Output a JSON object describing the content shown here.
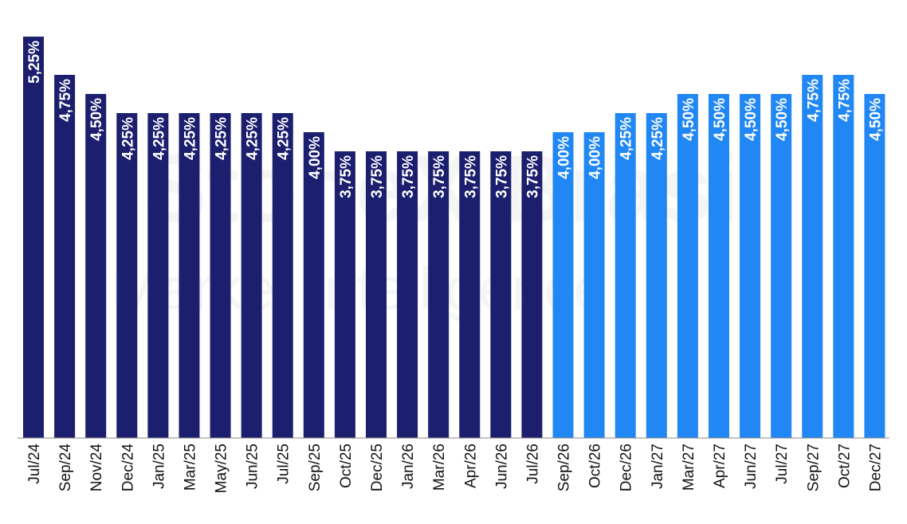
{
  "watermark": {
    "line1": "StoneX Brasil",
    "line2": "Market Intelligence"
  },
  "colors": {
    "historical": "#1b1f6e",
    "projected": "#2187f5",
    "label": "#ffffff",
    "axis": "#888888"
  },
  "chart_data": {
    "type": "bar",
    "title": "",
    "xlabel": "",
    "ylabel": "",
    "ylim": [
      0,
      5.25
    ],
    "grid": false,
    "legend": "none",
    "categories": [
      "Jul/24",
      "Sep/24",
      "Nov/24",
      "Dec/24",
      "Jan/25",
      "Mar/25",
      "May/25",
      "Jun/25",
      "Jul/25",
      "Sep/25",
      "Oct/25",
      "Dec/25",
      "Jan/26",
      "Mar/26",
      "Apr/26",
      "Jun/26",
      "Jul/26",
      "Sep/26",
      "Oct/26",
      "Dec/26",
      "Jan/27",
      "Mar/27",
      "Apr/27",
      "Jun/27",
      "Jul/27",
      "Sep/27",
      "Oct/27",
      "Dec/27"
    ],
    "values": [
      5.25,
      4.75,
      4.5,
      4.25,
      4.25,
      4.25,
      4.25,
      4.25,
      4.25,
      4.0,
      3.75,
      3.75,
      3.75,
      3.75,
      3.75,
      3.75,
      3.75,
      4.0,
      4.0,
      4.25,
      4.25,
      4.5,
      4.5,
      4.5,
      4.5,
      4.75,
      4.75,
      4.5
    ],
    "value_labels": [
      "5,25%",
      "4,75%",
      "4,50%",
      "4,25%",
      "4,25%",
      "4,25%",
      "4,25%",
      "4,25%",
      "4,25%",
      "4,00%",
      "3,75%",
      "3,75%",
      "3,75%",
      "3,75%",
      "3,75%",
      "3,75%",
      "3,75%",
      "4,00%",
      "4,00%",
      "4,25%",
      "4,25%",
      "4,50%",
      "4,50%",
      "4,50%",
      "4,50%",
      "4,75%",
      "4,75%",
      "4,50%"
    ],
    "projected_from_index": 17
  }
}
